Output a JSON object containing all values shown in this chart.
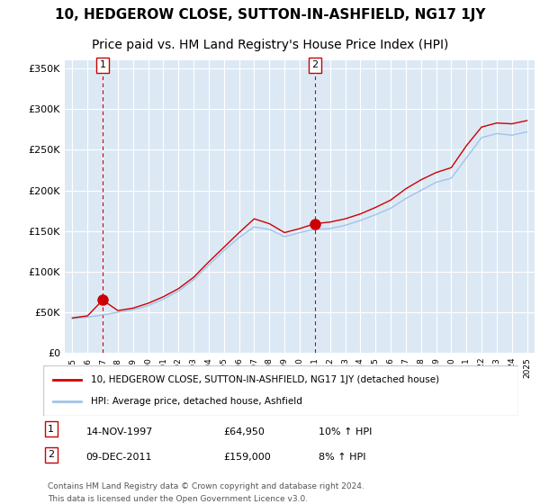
{
  "title": "10, HEDGEROW CLOSE, SUTTON-IN-ASHFIELD, NG17 1JY",
  "subtitle": "Price paid vs. HM Land Registry's House Price Index (HPI)",
  "title_fontsize": 11,
  "subtitle_fontsize": 10,
  "xlabel": "",
  "ylabel": "",
  "ylim": [
    0,
    360000
  ],
  "yticks": [
    0,
    50000,
    100000,
    150000,
    200000,
    250000,
    300000,
    350000
  ],
  "ytick_labels": [
    "£0",
    "£50K",
    "£100K",
    "£150K",
    "£200K",
    "£250K",
    "£300K",
    "£350K"
  ],
  "background_color": "#ffffff",
  "plot_bg_color": "#dce9f5",
  "grid_color": "#ffffff",
  "legend_entry1": "10, HEDGEROW CLOSE, SUTTON-IN-ASHFIELD, NG17 1JY (detached house)",
  "legend_entry2": "HPI: Average price, detached house, Ashfield",
  "marker1_date_idx": 2,
  "marker1_value": 64950,
  "marker1_label": "1",
  "marker1_annotation": "14-NOV-1997    £64,950       10% ↑ HPI",
  "marker2_date_idx": 16,
  "marker2_value": 159000,
  "marker2_label": "2",
  "marker2_annotation": "09-DEC-2011    £159,000      8% ↑ HPI",
  "footer1": "Contains HM Land Registry data © Crown copyright and database right 2024.",
  "footer2": "This data is licensed under the Open Government Licence v3.0.",
  "red_color": "#cc0000",
  "blue_color": "#a0c4e8",
  "dashed_red": "#cc0000",
  "years": [
    1995,
    1996,
    1997,
    1998,
    1999,
    2000,
    2001,
    2002,
    2003,
    2004,
    2005,
    2006,
    2007,
    2008,
    2009,
    2010,
    2011,
    2012,
    2013,
    2014,
    2015,
    2016,
    2017,
    2018,
    2019,
    2020,
    2021,
    2022,
    2023,
    2024,
    2025
  ],
  "hpi_values": [
    42000,
    44000,
    46500,
    50000,
    53000,
    58000,
    66000,
    76000,
    90000,
    108000,
    126000,
    142000,
    155000,
    152000,
    143000,
    148000,
    152000,
    153000,
    157000,
    163000,
    170000,
    178000,
    190000,
    200000,
    210000,
    215000,
    240000,
    265000,
    270000,
    268000,
    272000
  ],
  "property_values": [
    43000,
    45500,
    64950,
    52000,
    55000,
    61000,
    69000,
    79000,
    93000,
    112000,
    130000,
    148000,
    165000,
    159000,
    148000,
    153000,
    159000,
    161000,
    165000,
    171000,
    179000,
    188000,
    202000,
    213000,
    222000,
    228000,
    255000,
    278000,
    283000,
    282000,
    286000
  ]
}
